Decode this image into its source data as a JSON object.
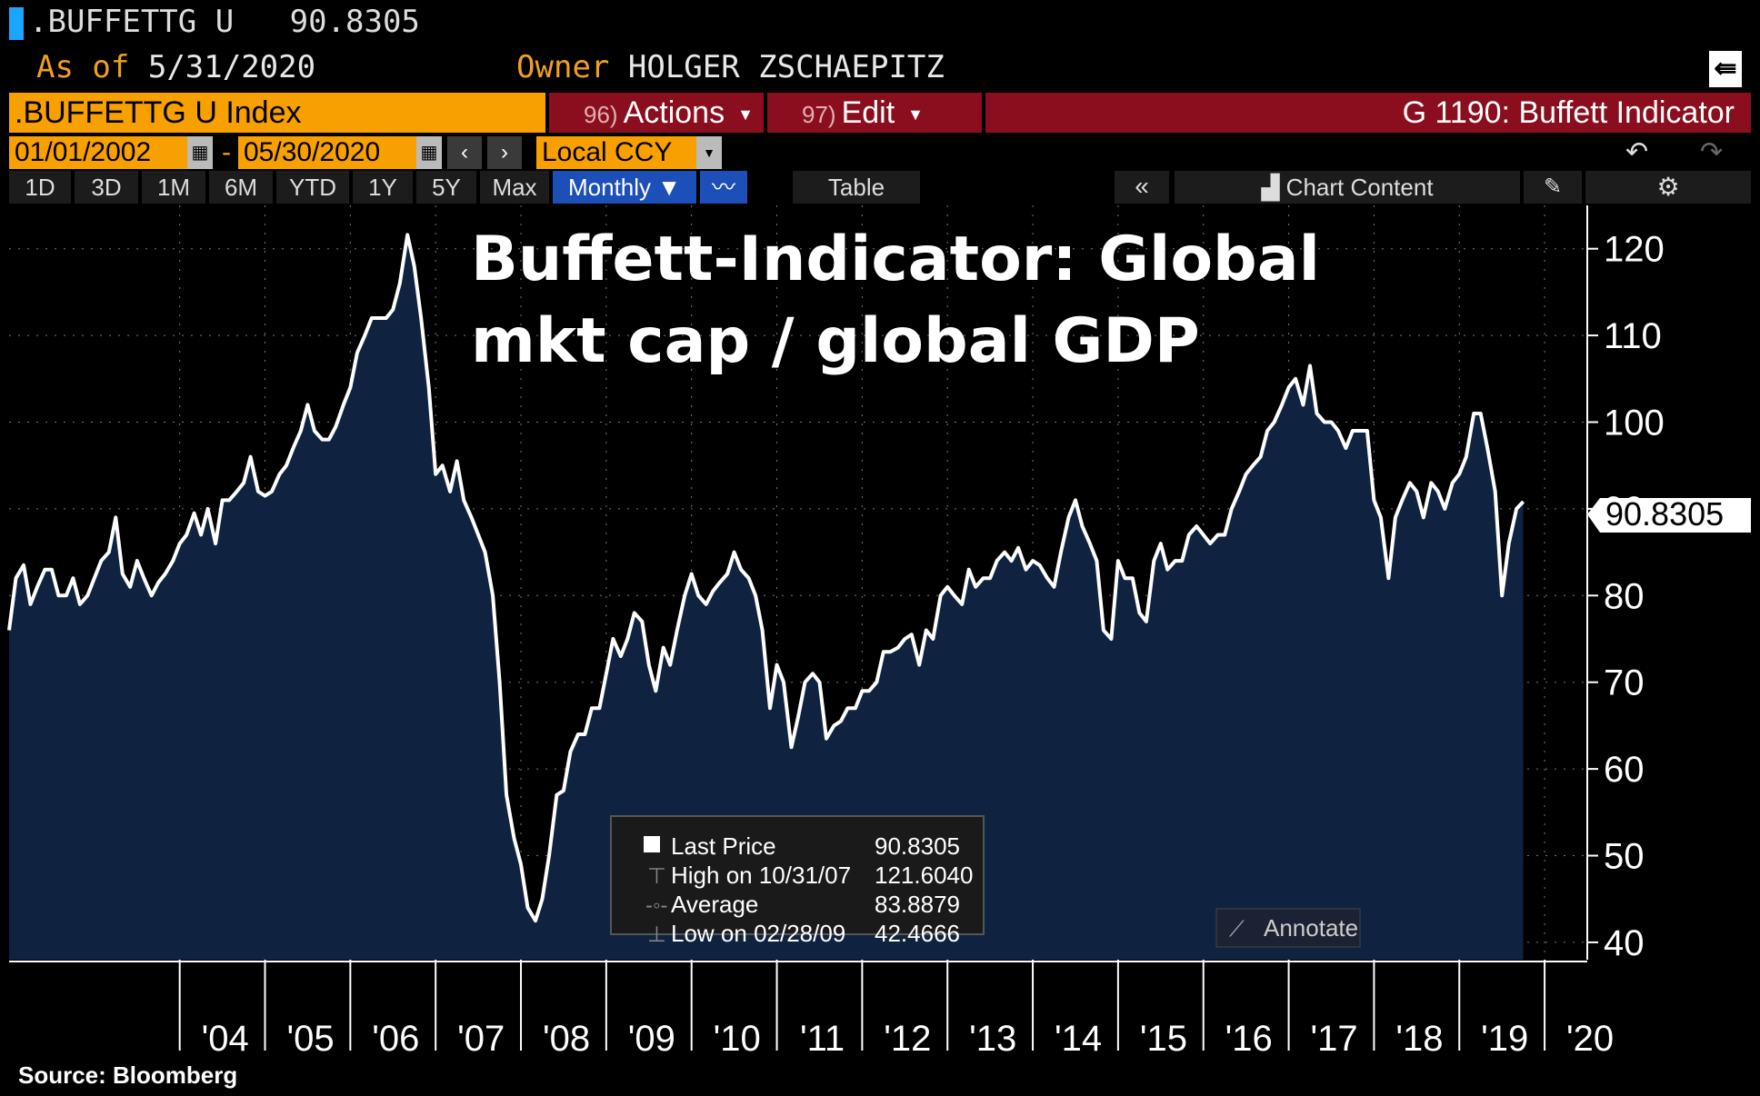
{
  "header": {
    "ticker": ".BUFFETTG U",
    "last_value": "90.8305",
    "asof_label": "As of",
    "asof_date": "5/31/2020",
    "owner_label": "Owner",
    "owner_name": "HOLGER ZSCHAEPITZ"
  },
  "toolbar": {
    "index_field": ".BUFFETTG U Index",
    "actions_num": "96)",
    "actions_label": "Actions",
    "edit_num": "97)",
    "edit_label": "Edit",
    "graph_title": "G 1190: Buffett Indicator",
    "start_date": "01/01/2002",
    "end_date": "05/30/2020",
    "currency": "Local CCY",
    "periods": [
      "1D",
      "3D",
      "1M",
      "6M",
      "YTD",
      "1Y",
      "5Y",
      "Max"
    ],
    "frequency": "Monthly",
    "table_label": "Table",
    "chart_content_label": "Chart Content"
  },
  "legend": {
    "last_price_label": "Last Price",
    "last_price_value": "90.8305",
    "high_label": "High on 10/31/07",
    "high_value": "121.6040",
    "average_label": "Average",
    "average_value": "83.8879",
    "low_label": "Low on 02/28/09",
    "low_value": "42.4666"
  },
  "annotate_label": "Annotate",
  "source": "Source: Bloomberg",
  "colors": {
    "line": "#ffffff",
    "area": "#0f2340",
    "amber": "#f7a000",
    "barred": "#8b0e1e",
    "selected": "#1c4fb8"
  },
  "chart_data": {
    "type": "area",
    "title": "Buffett-Indicator: Global mkt cap / global GDP",
    "last_label": "90.8305",
    "ylim": [
      38,
      125
    ],
    "yticks": [
      40,
      50,
      60,
      70,
      80,
      90,
      100,
      110,
      120
    ],
    "xlim": [
      2002.0,
      2020.5
    ],
    "xticks": [
      {
        "label": "'04",
        "x": 2004.0
      },
      {
        "label": "'05",
        "x": 2005.0
      },
      {
        "label": "'06",
        "x": 2006.0
      },
      {
        "label": "'07",
        "x": 2007.0
      },
      {
        "label": "'08",
        "x": 2008.0
      },
      {
        "label": "'09",
        "x": 2009.0
      },
      {
        "label": "'10",
        "x": 2010.0
      },
      {
        "label": "'11",
        "x": 2011.0
      },
      {
        "label": "'12",
        "x": 2012.0
      },
      {
        "label": "'13",
        "x": 2013.0
      },
      {
        "label": "'14",
        "x": 2014.0
      },
      {
        "label": "'15",
        "x": 2015.0
      },
      {
        "label": "'16",
        "x": 2016.0
      },
      {
        "label": "'17",
        "x": 2017.0
      },
      {
        "label": "'18",
        "x": 2018.0
      },
      {
        "label": "'19",
        "x": 2019.0
      },
      {
        "label": "'20",
        "x": 2020.0
      }
    ],
    "series": [
      {
        "points": [
          [
            2002.0,
            76
          ],
          [
            2002.08,
            82
          ],
          [
            2002.17,
            83.5
          ],
          [
            2002.25,
            79
          ],
          [
            2002.33,
            81
          ],
          [
            2002.42,
            83
          ],
          [
            2002.5,
            83
          ],
          [
            2002.58,
            80
          ],
          [
            2002.67,
            80
          ],
          [
            2002.75,
            82
          ],
          [
            2002.83,
            79
          ],
          [
            2002.92,
            80
          ],
          [
            2003.0,
            82
          ],
          [
            2003.08,
            84
          ],
          [
            2003.17,
            85
          ],
          [
            2003.25,
            89
          ],
          [
            2003.33,
            82.5
          ],
          [
            2003.42,
            81
          ],
          [
            2003.5,
            84
          ],
          [
            2003.58,
            82
          ],
          [
            2003.67,
            80
          ],
          [
            2003.75,
            81.5
          ],
          [
            2003.83,
            82.5
          ],
          [
            2003.92,
            84
          ],
          [
            2004.0,
            86
          ],
          [
            2004.08,
            87
          ],
          [
            2004.17,
            89.5
          ],
          [
            2004.25,
            87
          ],
          [
            2004.33,
            90
          ],
          [
            2004.42,
            86
          ],
          [
            2004.5,
            91
          ],
          [
            2004.58,
            91
          ],
          [
            2004.67,
            92
          ],
          [
            2004.75,
            93
          ],
          [
            2004.83,
            96
          ],
          [
            2004.92,
            92
          ],
          [
            2005.0,
            91.5
          ],
          [
            2005.08,
            92
          ],
          [
            2005.17,
            94
          ],
          [
            2005.25,
            95
          ],
          [
            2005.33,
            97
          ],
          [
            2005.42,
            99
          ],
          [
            2005.5,
            102
          ],
          [
            2005.58,
            99
          ],
          [
            2005.67,
            98
          ],
          [
            2005.75,
            98
          ],
          [
            2005.83,
            99.5
          ],
          [
            2005.92,
            102
          ],
          [
            2006.0,
            104
          ],
          [
            2006.08,
            108
          ],
          [
            2006.17,
            110
          ],
          [
            2006.25,
            112
          ],
          [
            2006.33,
            112
          ],
          [
            2006.42,
            112
          ],
          [
            2006.5,
            113
          ],
          [
            2006.58,
            116
          ],
          [
            2006.67,
            121.6
          ],
          [
            2006.75,
            118
          ],
          [
            2006.83,
            112
          ],
          [
            2006.92,
            104
          ],
          [
            2007.0,
            94
          ],
          [
            2007.08,
            95
          ],
          [
            2007.17,
            92
          ],
          [
            2007.25,
            95.5
          ],
          [
            2007.33,
            91
          ],
          [
            2007.42,
            89
          ],
          [
            2007.5,
            87
          ],
          [
            2007.58,
            85
          ],
          [
            2007.67,
            80
          ],
          [
            2007.75,
            70
          ],
          [
            2007.83,
            57
          ],
          [
            2007.92,
            52
          ],
          [
            2008.0,
            49
          ],
          [
            2008.08,
            44
          ],
          [
            2008.17,
            42.5
          ],
          [
            2008.25,
            45
          ],
          [
            2008.33,
            50
          ],
          [
            2008.42,
            57
          ],
          [
            2008.5,
            57.5
          ],
          [
            2008.58,
            62
          ],
          [
            2008.67,
            64
          ],
          [
            2008.75,
            64
          ],
          [
            2008.83,
            67
          ],
          [
            2008.92,
            67
          ],
          [
            2009.0,
            71
          ],
          [
            2009.08,
            75
          ],
          [
            2009.17,
            73
          ],
          [
            2009.25,
            75
          ],
          [
            2009.33,
            78
          ],
          [
            2009.42,
            77
          ],
          [
            2009.5,
            72
          ],
          [
            2009.58,
            69
          ],
          [
            2009.67,
            74
          ],
          [
            2009.75,
            72
          ],
          [
            2009.83,
            76
          ],
          [
            2009.92,
            80
          ],
          [
            2010.0,
            82.5
          ],
          [
            2010.08,
            80
          ],
          [
            2010.17,
            79
          ],
          [
            2010.25,
            80.5
          ],
          [
            2010.33,
            81.5
          ],
          [
            2010.42,
            82.5
          ],
          [
            2010.5,
            85
          ],
          [
            2010.58,
            83
          ],
          [
            2010.67,
            82
          ],
          [
            2010.75,
            80
          ],
          [
            2010.83,
            76
          ],
          [
            2010.92,
            67
          ],
          [
            2011.0,
            72
          ],
          [
            2011.08,
            70
          ],
          [
            2011.17,
            62.5
          ],
          [
            2011.25,
            66
          ],
          [
            2011.33,
            70
          ],
          [
            2011.42,
            71
          ],
          [
            2011.5,
            70
          ],
          [
            2011.58,
            63.5
          ],
          [
            2011.67,
            65
          ],
          [
            2011.75,
            65.5
          ],
          [
            2011.83,
            67
          ],
          [
            2011.92,
            67
          ],
          [
            2012.0,
            69
          ],
          [
            2012.08,
            69
          ],
          [
            2012.17,
            70
          ],
          [
            2012.25,
            73.5
          ],
          [
            2012.33,
            73.5
          ],
          [
            2012.42,
            74
          ],
          [
            2012.5,
            75
          ],
          [
            2012.58,
            75.5
          ],
          [
            2012.67,
            72
          ],
          [
            2012.75,
            76
          ],
          [
            2012.83,
            75
          ],
          [
            2012.92,
            80
          ],
          [
            2013.0,
            81
          ],
          [
            2013.08,
            80
          ],
          [
            2013.17,
            79
          ],
          [
            2013.25,
            83
          ],
          [
            2013.33,
            81
          ],
          [
            2013.42,
            82
          ],
          [
            2013.5,
            82
          ],
          [
            2013.58,
            84
          ],
          [
            2013.67,
            85
          ],
          [
            2013.75,
            84
          ],
          [
            2013.83,
            85.5
          ],
          [
            2013.92,
            83
          ],
          [
            2014.0,
            84
          ],
          [
            2014.08,
            83.5
          ],
          [
            2014.17,
            82
          ],
          [
            2014.25,
            81
          ],
          [
            2014.33,
            85
          ],
          [
            2014.42,
            89
          ],
          [
            2014.5,
            91
          ],
          [
            2014.58,
            88
          ],
          [
            2014.67,
            86
          ],
          [
            2014.75,
            84
          ],
          [
            2014.83,
            76
          ],
          [
            2014.92,
            75
          ],
          [
            2015.0,
            84
          ],
          [
            2015.08,
            82
          ],
          [
            2015.17,
            82
          ],
          [
            2015.25,
            78
          ],
          [
            2015.33,
            77
          ],
          [
            2015.42,
            84
          ],
          [
            2015.5,
            86
          ],
          [
            2015.58,
            83
          ],
          [
            2015.67,
            84
          ],
          [
            2015.75,
            84
          ],
          [
            2015.83,
            87
          ],
          [
            2015.92,
            88
          ],
          [
            2016.0,
            87
          ],
          [
            2016.08,
            86
          ],
          [
            2016.17,
            87
          ],
          [
            2016.25,
            87
          ],
          [
            2016.33,
            90
          ],
          [
            2016.42,
            92
          ],
          [
            2016.5,
            94
          ],
          [
            2016.58,
            95
          ],
          [
            2016.67,
            96
          ],
          [
            2016.75,
            99
          ],
          [
            2016.83,
            100
          ],
          [
            2016.92,
            102
          ],
          [
            2017.0,
            104
          ],
          [
            2017.08,
            105
          ],
          [
            2017.17,
            102
          ],
          [
            2017.25,
            106.5
          ],
          [
            2017.33,
            101
          ],
          [
            2017.42,
            100
          ],
          [
            2017.5,
            100
          ],
          [
            2017.58,
            99
          ],
          [
            2017.67,
            97
          ],
          [
            2017.75,
            99
          ],
          [
            2017.83,
            99
          ],
          [
            2017.92,
            99
          ],
          [
            2018.0,
            91
          ],
          [
            2018.08,
            89
          ],
          [
            2018.17,
            82
          ],
          [
            2018.25,
            89
          ],
          [
            2018.33,
            91
          ],
          [
            2018.42,
            93
          ],
          [
            2018.5,
            92
          ],
          [
            2018.58,
            89
          ],
          [
            2018.67,
            93
          ],
          [
            2018.75,
            92
          ],
          [
            2018.83,
            90
          ],
          [
            2018.92,
            93
          ],
          [
            2019.0,
            94
          ],
          [
            2019.08,
            96
          ],
          [
            2019.17,
            101
          ],
          [
            2019.25,
            101
          ],
          [
            2019.33,
            97
          ],
          [
            2019.42,
            92
          ],
          [
            2019.5,
            80
          ],
          [
            2019.58,
            86
          ],
          [
            2019.67,
            90
          ],
          [
            2019.75,
            90.83
          ]
        ]
      }
    ]
  }
}
